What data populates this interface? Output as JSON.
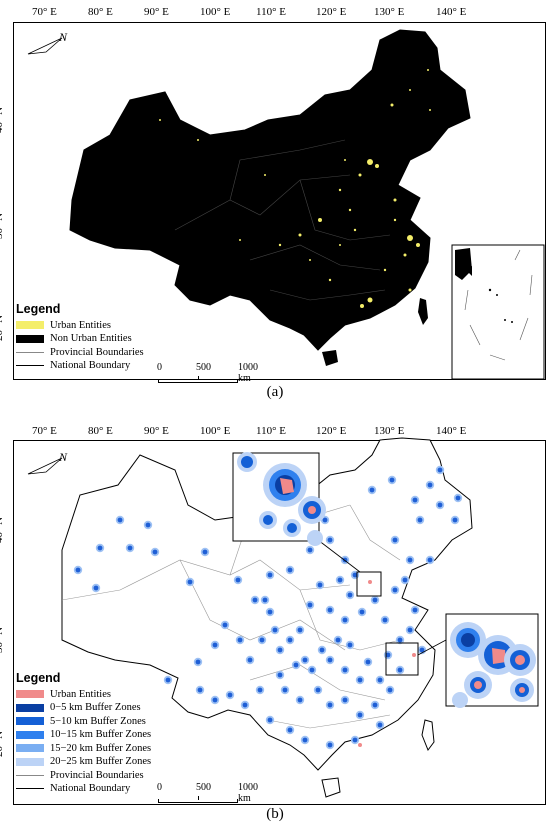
{
  "panel_a": {
    "caption": "(a)",
    "longitude_ticks": [
      "70° E",
      "80° E",
      "90° E",
      "100° E",
      "110° E",
      "120° E",
      "130° E",
      "140° E"
    ],
    "latitude_ticks": [
      "40° N",
      "30° N",
      "20° N"
    ],
    "north_label": "N",
    "legend": {
      "title": "Legend",
      "items": [
        {
          "label": "Urban Entities",
          "color": "#f4ee6a",
          "type": "swatch"
        },
        {
          "label": "Non Urban Entities",
          "color": "#000000",
          "type": "swatch"
        },
        {
          "label": "Provincial Boundaries",
          "color": "#888888",
          "type": "line"
        },
        {
          "label": "National Boundary",
          "color": "#000000",
          "type": "line"
        }
      ]
    },
    "scale": {
      "labels": [
        "0",
        "500",
        "1000 km"
      ]
    }
  },
  "panel_b": {
    "caption": "(b)",
    "longitude_ticks": [
      "70° E",
      "80° E",
      "90° E",
      "100° E",
      "110° E",
      "120° E",
      "130° E",
      "140° E"
    ],
    "latitude_ticks": [
      "40° N",
      "30° N",
      "20° N"
    ],
    "north_label": "N",
    "legend": {
      "title": "Legend",
      "items": [
        {
          "label": "Urban Entities",
          "color": "#f08a8a",
          "type": "swatch"
        },
        {
          "label": "0−5 km Buffer Zones",
          "color": "#0a3fa3",
          "type": "swatch"
        },
        {
          "label": "5−10 km Buffer Zones",
          "color": "#1460d6",
          "type": "swatch"
        },
        {
          "label": "10−15 km Buffer Zones",
          "color": "#2f80ee",
          "type": "swatch"
        },
        {
          "label": "15−20 km Buffer Zones",
          "color": "#7aaef2",
          "type": "swatch"
        },
        {
          "label": "20−25 km Buffer Zones",
          "color": "#bcd3f6",
          "type": "swatch"
        },
        {
          "label": "Provincial Boundaries",
          "color": "#888888",
          "type": "line"
        },
        {
          "label": "National Boundary",
          "color": "#000000",
          "type": "line"
        }
      ]
    },
    "scale": {
      "labels": [
        "0",
        "500",
        "1000 km"
      ]
    }
  },
  "colors": {
    "urban": "#f4ee6a",
    "buffer_outer": "#9ec1f3",
    "buffer_core": "#1f5fd6",
    "urban_b": "#f08a8a"
  }
}
